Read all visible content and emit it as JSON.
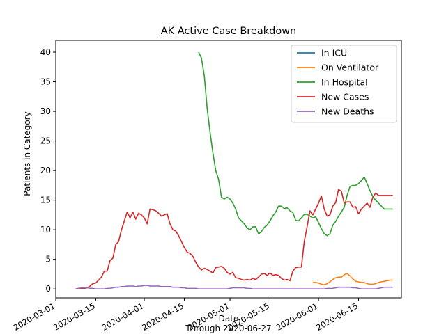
{
  "chart_data": {
    "type": "line",
    "title": "AK Active Case Breakdown",
    "xlabel": "Date",
    "xlabel_sub": "Through 2020-06-27",
    "ylabel": "Patients in Category",
    "xlim": [
      "2020-03-01",
      "2020-06-30"
    ],
    "ylim": [
      -1.5,
      42
    ],
    "x_ticks": [
      "2020-03-01",
      "2020-03-15",
      "2020-04-01",
      "2020-04-15",
      "2020-05-01",
      "2020-05-15",
      "2020-06-01",
      "2020-06-15"
    ],
    "y_ticks": [
      0,
      5,
      10,
      15,
      20,
      25,
      30,
      35,
      40
    ],
    "grid": false,
    "legend_position": "top-right",
    "series": [
      {
        "name": "In ICU",
        "color": "#1f77b4",
        "x": [],
        "values": []
      },
      {
        "name": "On Ventilator",
        "color": "#ff7f0e",
        "x": [
          "2020-05-30",
          "2020-05-31",
          "2020-06-01",
          "2020-06-02",
          "2020-06-03",
          "2020-06-04",
          "2020-06-05",
          "2020-06-06",
          "2020-06-07",
          "2020-06-08",
          "2020-06-09",
          "2020-06-10",
          "2020-06-11",
          "2020-06-12",
          "2020-06-13",
          "2020-06-14",
          "2020-06-15",
          "2020-06-16",
          "2020-06-17",
          "2020-06-18",
          "2020-06-19",
          "2020-06-20",
          "2020-06-21",
          "2020-06-22",
          "2020-06-23",
          "2020-06-24",
          "2020-06-25",
          "2020-06-26",
          "2020-06-27"
        ],
        "values": [
          1.1,
          1.1,
          1.0,
          0.8,
          0.7,
          0.9,
          1.2,
          1.6,
          1.9,
          2.0,
          2.0,
          2.4,
          2.6,
          2.2,
          1.7,
          1.3,
          1.2,
          1.1,
          1.1,
          0.9,
          0.8,
          0.8,
          0.9,
          1.1,
          1.2,
          1.3,
          1.4,
          1.5,
          1.5
        ]
      },
      {
        "name": "In Hospital",
        "color": "#2ca02c",
        "x": [
          "2020-04-20",
          "2020-04-21",
          "2020-04-22",
          "2020-04-23",
          "2020-04-24",
          "2020-04-25",
          "2020-04-26",
          "2020-04-27",
          "2020-04-28",
          "2020-04-29",
          "2020-04-30",
          "2020-05-01",
          "2020-05-02",
          "2020-05-03",
          "2020-05-04",
          "2020-05-05",
          "2020-05-06",
          "2020-05-07",
          "2020-05-08",
          "2020-05-09",
          "2020-05-10",
          "2020-05-11",
          "2020-05-12",
          "2020-05-13",
          "2020-05-14",
          "2020-05-15",
          "2020-05-16",
          "2020-05-17",
          "2020-05-18",
          "2020-05-19",
          "2020-05-20",
          "2020-05-21",
          "2020-05-22",
          "2020-05-23",
          "2020-05-24",
          "2020-05-25",
          "2020-05-26",
          "2020-05-27",
          "2020-05-28",
          "2020-05-29",
          "2020-05-30",
          "2020-05-31",
          "2020-06-01",
          "2020-06-02",
          "2020-06-03",
          "2020-06-04",
          "2020-06-05",
          "2020-06-06",
          "2020-06-07",
          "2020-06-08",
          "2020-06-09",
          "2020-06-10",
          "2020-06-11",
          "2020-06-12",
          "2020-06-13",
          "2020-06-14",
          "2020-06-15",
          "2020-06-16",
          "2020-06-17",
          "2020-06-18",
          "2020-06-19",
          "2020-06-20",
          "2020-06-21",
          "2020-06-22",
          "2020-06-23",
          "2020-06-24",
          "2020-06-25",
          "2020-06-26",
          "2020-06-27"
        ],
        "values": [
          40.0,
          39.0,
          36.0,
          30.5,
          26.5,
          23.0,
          20.0,
          18.5,
          15.5,
          15.2,
          15.5,
          15.2,
          14.5,
          13.5,
          12.0,
          11.5,
          11.0,
          10.3,
          10.0,
          10.5,
          10.5,
          9.3,
          9.7,
          10.4,
          10.8,
          11.5,
          12.3,
          13.0,
          14.0,
          14.0,
          13.6,
          13.7,
          13.2,
          12.9,
          11.6,
          11.5,
          12.0,
          12.6,
          12.6,
          12.3,
          12.0,
          12.2,
          11.2,
          10.2,
          9.3,
          9.0,
          9.3,
          10.8,
          11.4,
          12.3,
          13.0,
          13.8,
          15.8,
          17.3,
          17.5,
          17.5,
          17.8,
          18.3,
          18.9,
          17.8,
          16.6,
          15.6,
          15.0,
          14.5,
          14.0,
          13.5,
          13.5,
          13.5,
          13.5
        ]
      },
      {
        "name": "New Cases",
        "color": "#d62728",
        "x": [
          "2020-03-08",
          "2020-03-09",
          "2020-03-10",
          "2020-03-11",
          "2020-03-12",
          "2020-03-13",
          "2020-03-14",
          "2020-03-15",
          "2020-03-16",
          "2020-03-17",
          "2020-03-18",
          "2020-03-19",
          "2020-03-20",
          "2020-03-21",
          "2020-03-22",
          "2020-03-23",
          "2020-03-24",
          "2020-03-25",
          "2020-03-26",
          "2020-03-27",
          "2020-03-28",
          "2020-03-29",
          "2020-03-30",
          "2020-03-31",
          "2020-04-01",
          "2020-04-02",
          "2020-04-03",
          "2020-04-04",
          "2020-04-05",
          "2020-04-06",
          "2020-04-07",
          "2020-04-08",
          "2020-04-09",
          "2020-04-10",
          "2020-04-11",
          "2020-04-12",
          "2020-04-13",
          "2020-04-14",
          "2020-04-15",
          "2020-04-16",
          "2020-04-17",
          "2020-04-18",
          "2020-04-19",
          "2020-04-20",
          "2020-04-21",
          "2020-04-22",
          "2020-04-23",
          "2020-04-24",
          "2020-04-25",
          "2020-04-26",
          "2020-04-27",
          "2020-04-28",
          "2020-04-29",
          "2020-04-30",
          "2020-05-01",
          "2020-05-02",
          "2020-05-03",
          "2020-05-04",
          "2020-05-05",
          "2020-05-06",
          "2020-05-07",
          "2020-05-08",
          "2020-05-09",
          "2020-05-10",
          "2020-05-11",
          "2020-05-12",
          "2020-05-13",
          "2020-05-14",
          "2020-05-15",
          "2020-05-16",
          "2020-05-17",
          "2020-05-18",
          "2020-05-19",
          "2020-05-20",
          "2020-05-21",
          "2020-05-22",
          "2020-05-23",
          "2020-05-24",
          "2020-05-25",
          "2020-05-26",
          "2020-05-27",
          "2020-05-28",
          "2020-05-29",
          "2020-05-30",
          "2020-05-31",
          "2020-06-01",
          "2020-06-02",
          "2020-06-03",
          "2020-06-04",
          "2020-06-05",
          "2020-06-06",
          "2020-06-07",
          "2020-06-08",
          "2020-06-09",
          "2020-06-10",
          "2020-06-11",
          "2020-06-12",
          "2020-06-13",
          "2020-06-14",
          "2020-06-15",
          "2020-06-16",
          "2020-06-17",
          "2020-06-18",
          "2020-06-19",
          "2020-06-20",
          "2020-06-21",
          "2020-06-22",
          "2020-06-23",
          "2020-06-24",
          "2020-06-25",
          "2020-06-26",
          "2020-06-27"
        ],
        "values": [
          0.0,
          0.1,
          0.1,
          0.1,
          0.2,
          0.5,
          0.9,
          1.0,
          1.5,
          2.0,
          3.0,
          3.0,
          4.8,
          5.2,
          7.5,
          8.0,
          10.0,
          11.5,
          13.0,
          12.0,
          13.0,
          11.8,
          12.8,
          12.5,
          12.0,
          11.0,
          13.5,
          13.4,
          13.2,
          12.8,
          12.3,
          12.5,
          12.7,
          11.0,
          10.0,
          9.8,
          9.0,
          8.0,
          7.0,
          6.2,
          6.0,
          5.5,
          4.5,
          3.7,
          3.2,
          3.5,
          3.3,
          3.0,
          2.7,
          3.6,
          3.7,
          3.8,
          3.5,
          2.8,
          2.5,
          2.8,
          1.9,
          1.8,
          1.6,
          1.5,
          1.6,
          1.5,
          1.8,
          1.6,
          2.0,
          2.5,
          2.6,
          2.3,
          2.7,
          2.3,
          2.4,
          2.3,
          1.8,
          1.5,
          1.6,
          1.4,
          3.0,
          3.6,
          3.7,
          3.7,
          8.0,
          10.5,
          13.2,
          12.5,
          13.5,
          14.5,
          15.7,
          13.5,
          12.3,
          12.5,
          14.0,
          14.6,
          16.8,
          16.5,
          14.5,
          14.7,
          14.7,
          13.8,
          13.9,
          12.7,
          13.5,
          14.0,
          14.5,
          13.8,
          15.5,
          16.2,
          15.8,
          15.8,
          15.8,
          15.8,
          15.8,
          15.8
        ]
      },
      {
        "name": "New Deaths",
        "color": "#9467bd",
        "x": [
          "2020-03-08",
          "2020-03-09",
          "2020-03-10",
          "2020-03-11",
          "2020-03-12",
          "2020-03-13",
          "2020-03-14",
          "2020-03-15",
          "2020-03-16",
          "2020-03-17",
          "2020-03-18",
          "2020-03-19",
          "2020-03-20",
          "2020-03-21",
          "2020-03-22",
          "2020-03-23",
          "2020-03-24",
          "2020-03-25",
          "2020-03-26",
          "2020-03-27",
          "2020-03-28",
          "2020-03-29",
          "2020-03-30",
          "2020-03-31",
          "2020-04-01",
          "2020-04-02",
          "2020-04-03",
          "2020-04-04",
          "2020-04-05",
          "2020-04-06",
          "2020-04-07",
          "2020-04-08",
          "2020-04-09",
          "2020-04-10",
          "2020-04-11",
          "2020-04-12",
          "2020-04-13",
          "2020-04-14",
          "2020-04-15",
          "2020-04-16",
          "2020-04-17",
          "2020-04-18",
          "2020-04-19",
          "2020-04-20",
          "2020-04-21",
          "2020-04-22",
          "2020-04-23",
          "2020-04-24",
          "2020-04-25",
          "2020-04-26",
          "2020-04-27",
          "2020-04-28",
          "2020-04-29",
          "2020-04-30",
          "2020-05-01",
          "2020-05-02",
          "2020-05-03",
          "2020-05-04",
          "2020-05-05",
          "2020-05-06",
          "2020-05-07",
          "2020-05-08",
          "2020-05-09",
          "2020-05-10",
          "2020-05-11",
          "2020-05-12",
          "2020-05-13",
          "2020-05-14",
          "2020-05-15",
          "2020-05-16",
          "2020-05-17",
          "2020-05-18",
          "2020-05-19",
          "2020-05-20",
          "2020-05-21",
          "2020-05-22",
          "2020-05-23",
          "2020-05-24",
          "2020-05-25",
          "2020-05-26",
          "2020-05-27",
          "2020-05-28",
          "2020-05-29",
          "2020-05-30",
          "2020-05-31",
          "2020-06-01",
          "2020-06-02",
          "2020-06-03",
          "2020-06-04",
          "2020-06-05",
          "2020-06-06",
          "2020-06-07",
          "2020-06-08",
          "2020-06-09",
          "2020-06-10",
          "2020-06-11",
          "2020-06-12",
          "2020-06-13",
          "2020-06-14",
          "2020-06-15",
          "2020-06-16",
          "2020-06-17",
          "2020-06-18",
          "2020-06-19",
          "2020-06-20",
          "2020-06-21",
          "2020-06-22",
          "2020-06-23",
          "2020-06-24",
          "2020-06-25",
          "2020-06-26",
          "2020-06-27"
        ],
        "values": [
          0.0,
          0.1,
          0.2,
          0.2,
          0.2,
          0.1,
          0.1,
          0.0,
          0.0,
          0.0,
          0.0,
          0.1,
          0.1,
          0.2,
          0.3,
          0.3,
          0.4,
          0.4,
          0.5,
          0.5,
          0.5,
          0.4,
          0.5,
          0.5,
          0.6,
          0.6,
          0.5,
          0.5,
          0.5,
          0.5,
          0.4,
          0.4,
          0.4,
          0.4,
          0.3,
          0.3,
          0.3,
          0.2,
          0.2,
          0.1,
          0.1,
          0.1,
          0.1,
          0.0,
          0.0,
          0.0,
          0.0,
          0.0,
          0.0,
          0.0,
          0.0,
          0.0,
          0.0,
          0.0,
          0.1,
          0.2,
          0.2,
          0.2,
          0.2,
          0.2,
          0.1,
          0.1,
          0.0,
          0.0,
          0.0,
          0.0,
          0.0,
          0.0,
          0.0,
          0.0,
          0.0,
          0.0,
          0.0,
          0.0,
          0.0,
          0.0,
          0.0,
          0.0,
          0.0,
          0.0,
          0.0,
          0.0,
          0.0,
          0.0,
          0.0,
          0.0,
          0.0,
          0.0,
          0.1,
          0.1,
          0.1,
          0.2,
          0.3,
          0.3,
          0.3,
          0.3,
          0.3,
          0.2,
          0.2,
          0.1,
          0.0,
          0.0,
          0.0,
          0.0,
          0.0,
          0.0,
          0.1,
          0.2,
          0.3,
          0.3,
          0.3,
          0.3
        ]
      }
    ]
  }
}
